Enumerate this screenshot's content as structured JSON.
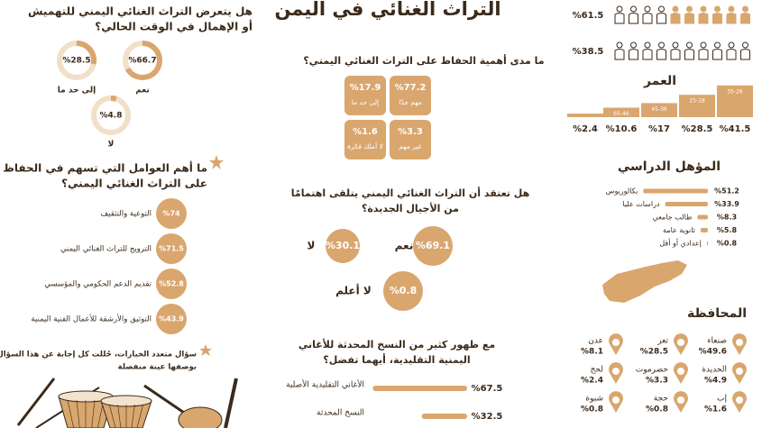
{
  "title": "التراث الغنائي في اليمن",
  "gender": {
    "values": [
      61.5,
      38.5
    ],
    "value_labels": [
      "%61.5",
      "%38.5"
    ]
  },
  "age": {
    "heading": "العمر",
    "categories": [
      "35-26",
      "25-18",
      "45-36",
      "65-46",
      "65 وما فوق"
    ],
    "values": [
      41.5,
      28.5,
      17,
      10.6,
      2.4
    ],
    "value_labels": [
      "%41.5",
      "%28.5",
      "%17",
      "%10.6",
      "%2.4"
    ]
  },
  "education": {
    "heading": "المؤهل الدراسي",
    "categories": [
      "بكالوريوس",
      "دراسات عليا",
      "طالب جامعي",
      "ثانوية عامة",
      "إعدادي أو أقل"
    ],
    "values": [
      51.2,
      33.9,
      8.3,
      5.8,
      0.8
    ],
    "value_labels": [
      "%51.2",
      "%33.9",
      "%8.3",
      "%5.8",
      "%0.8"
    ]
  },
  "governorate": {
    "heading": "المحافظة",
    "categories": [
      "صنعاء",
      "تعز",
      "عدن",
      "الحديدة",
      "حضرموت",
      "لحج",
      "إب",
      "حجة",
      "شبوة"
    ],
    "values": [
      49.6,
      28.5,
      8.1,
      4.9,
      3.3,
      2.4,
      1.6,
      0.8,
      0.8
    ],
    "value_labels": [
      "%49.6",
      "%28.5",
      "%8.1",
      "%4.9",
      "%3.3",
      "%2.4",
      "%1.6",
      "%0.8",
      "%0.8"
    ]
  },
  "importance": {
    "question": [
      "ما مدى أهمية الحفاظ على التراث الغنائي اليمني؟"
    ],
    "categories": [
      "مهم جدًا",
      "إلى حد ما",
      "غير مهم",
      "لا أملك فكرة"
    ],
    "values": [
      77.2,
      17.9,
      3.3,
      1.6
    ],
    "value_labels": [
      "%77.2",
      "%17.9",
      "%3.3",
      "%1.6"
    ]
  },
  "interest": {
    "question": [
      "هل تعتقد أن التراث الغنائي اليمني يتلقى اهتمامًا",
      "من الأجيال الجديدة؟"
    ],
    "categories": [
      "نعم",
      "لا",
      "لا أعلم"
    ],
    "values": [
      69.1,
      30.1,
      0.8
    ],
    "value_labels": [
      "%69.1",
      "%30.1",
      "%0.8"
    ]
  },
  "preference": {
    "question": [
      "مع ظهور كثير من النسخ المحدثة للأغاني",
      "اليمنية التقليدية، أيهما تفضل؟"
    ],
    "categories": [
      "الأغاني التقليدية الأصلية",
      "النسخ المحدثة"
    ],
    "values": [
      67.5,
      32.5
    ],
    "value_labels": [
      "%67.5",
      "%32.5"
    ]
  },
  "marginalization": {
    "question": [
      "هل يتعرض التراث الغنائي اليمني للتهميش",
      "أو الإهمال في الوقت الحالي؟"
    ],
    "categories": [
      "نعم",
      "إلى حد ما",
      "لا"
    ],
    "values": [
      66.7,
      28.5,
      4.8
    ],
    "value_labels": [
      "%66.7",
      "%28.5",
      "%4.8"
    ]
  },
  "factors": {
    "question": [
      "ما أهم العوامل التي تسهم في الحفاظ",
      "على التراث الغنائي اليمني؟"
    ],
    "categories": [
      "التوعية والتثقيف",
      "الترويج للتراث الغنائي اليمني",
      "تقديم الدعم الحكومي والمؤسسي",
      "التوثيق والأرشفة للأعمال الفنية اليمنية"
    ],
    "values": [
      74,
      71.5,
      52.8,
      43.9
    ],
    "value_labels": [
      "%74",
      "%71.5",
      "%52.8",
      "%43.9"
    ],
    "note": [
      "سؤال متعدد الخيارات، حُللت كل إجابة عن هذا السؤال",
      "بوصفها عينة منفصلة"
    ]
  }
}
